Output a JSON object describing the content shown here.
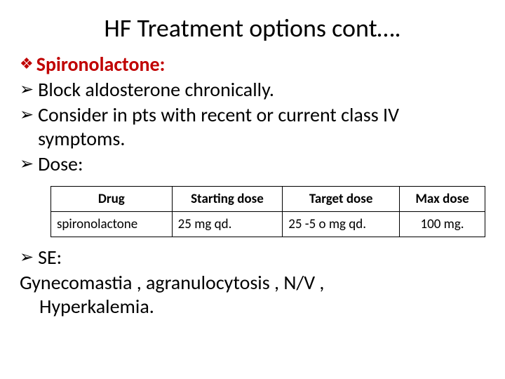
{
  "title": "HF Treatment options cont….",
  "heading": "Spironolactone:",
  "bullets": {
    "b1": "Block aldosterone chronically.",
    "b2": "Consider in pts with recent or current class IV symptoms.",
    "b3": "Dose:",
    "b4": "SE:"
  },
  "table": {
    "columns": [
      "Drug",
      "Starting dose",
      "Target dose",
      "Max dose"
    ],
    "rows": [
      [
        "spironolactone",
        "25 mg qd.",
        "25 -5 o mg qd.",
        "100 mg."
      ]
    ],
    "border_color": "#000000",
    "header_fontsize": 19,
    "cell_fontsize": 19,
    "col_align": [
      "left",
      "left",
      "left",
      "center"
    ]
  },
  "se_line1": "Gynecomastia , agranulocytosis , N/V ,",
  "se_line2": "Hyperkalemia.",
  "colors": {
    "accent": "#c00000",
    "text": "#000000",
    "background": "#ffffff"
  },
  "glyphs": {
    "diamond": "❖",
    "arrow": "➢"
  }
}
